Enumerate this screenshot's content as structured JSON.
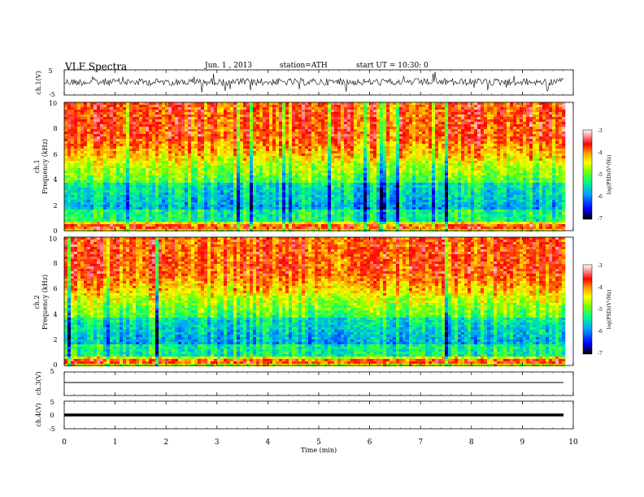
{
  "header": {
    "title": "VLF  Spectra",
    "date": "Jun. 1  , 2013",
    "station": "station=ATH",
    "start": "start  UT  =   10:30: 0"
  },
  "chart_data": [
    {
      "type": "line",
      "id": "ch1",
      "ylabel": "ch.1(V)",
      "ylim": [
        -5,
        5
      ],
      "yticks": [
        "5",
        "-5"
      ],
      "description_level": "noisy waveform"
    },
    {
      "type": "heatmap",
      "id": "spec1",
      "ylabel_top": "ch.1",
      "ylabel": "Frequency  (kHz)",
      "ylim": [
        0,
        10
      ],
      "yticks": [
        "0",
        "2",
        "4",
        "6",
        "8",
        "10"
      ],
      "colorbar": {
        "label": "log(PSD)(V²/Hz)",
        "range": [
          -7,
          -3
        ],
        "ticks": [
          "-3",
          "-4",
          "-5",
          "-6",
          "-7"
        ],
        "colors": [
          "#000000",
          "#0000ff",
          "#00a0ff",
          "#00ff80",
          "#80ff00",
          "#ffff00",
          "#ffa000",
          "#ff0000",
          "#ffffff"
        ]
      }
    },
    {
      "type": "heatmap",
      "id": "spec2",
      "ylabel_top": "ch.2",
      "ylabel": "Frequency  (kHz)",
      "ylim": [
        0,
        10
      ],
      "yticks": [
        "0",
        "2",
        "4",
        "6",
        "8",
        "10"
      ],
      "colorbar": {
        "label": "log(PSD)(V²/Hz)",
        "range": [
          -7,
          -3
        ],
        "ticks": [
          "-3",
          "-4",
          "-5",
          "-6",
          "-7"
        ]
      }
    },
    {
      "type": "line",
      "id": "ch3",
      "ylabel": "ch.3(V)",
      "ylim": [
        -5,
        5
      ],
      "yticks": [
        "5"
      ],
      "level": 0
    },
    {
      "type": "line",
      "id": "ch4",
      "ylabel": "ch.4(V)",
      "ylim": [
        -5,
        5
      ],
      "yticks": [
        "5",
        "0",
        "-5"
      ],
      "level": -0.3
    }
  ],
  "time_axis": {
    "xlabel": "Time  (min)",
    "xlim": [
      0,
      10
    ],
    "xticks": [
      "0",
      "1",
      "2",
      "3",
      "4",
      "5",
      "6",
      "7",
      "8",
      "9",
      "10"
    ],
    "data_end": 9.82
  }
}
